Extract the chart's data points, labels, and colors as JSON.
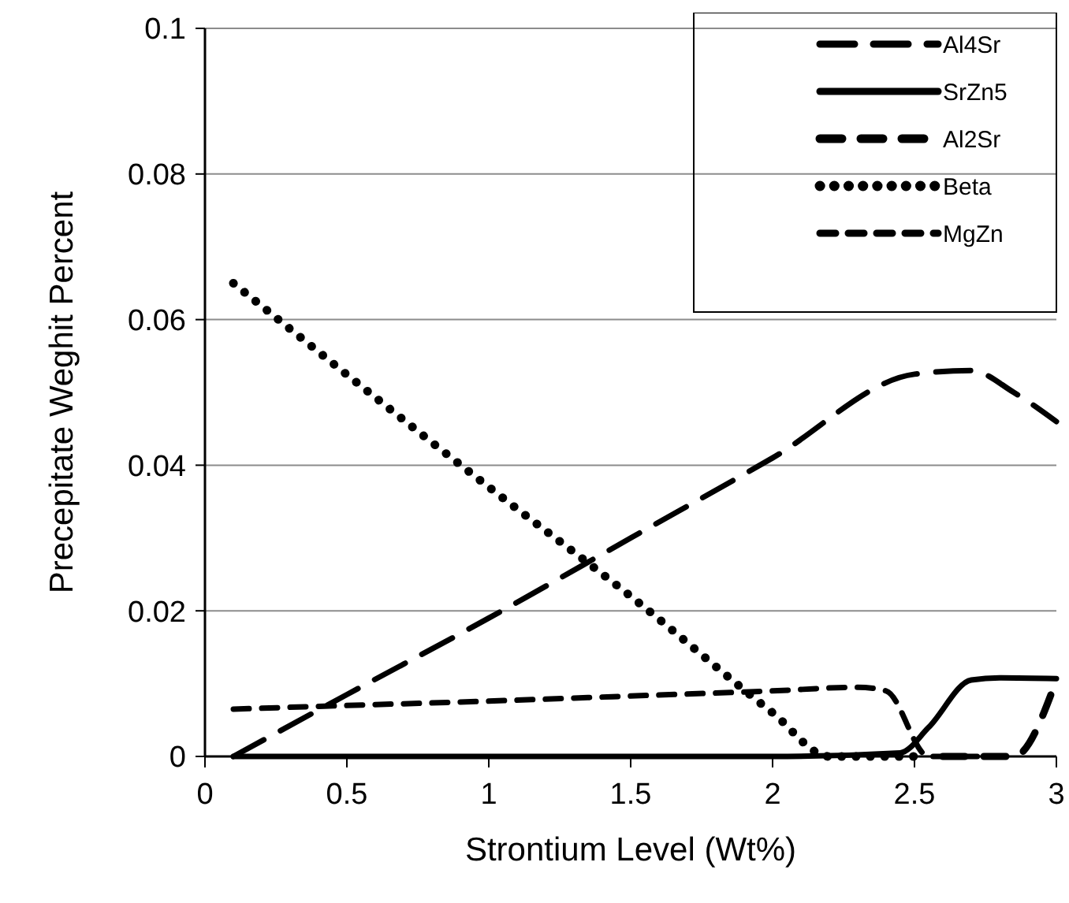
{
  "chart_data": {
    "type": "line",
    "xlabel": "Strontium Level (Wt%)",
    "ylabel": "Precepitate Weghit Percent",
    "xlim": [
      0,
      3
    ],
    "ylim": [
      0,
      0.1
    ],
    "xticks": [
      0,
      0.5,
      1,
      1.5,
      2,
      2.5,
      3
    ],
    "yticks": [
      0,
      0.02,
      0.04,
      0.06,
      0.08,
      0.1
    ],
    "grid": "y",
    "legend": "top right",
    "series": [
      {
        "name": "Al4Sr",
        "color": "#000000",
        "line_style": "dashed",
        "x": [
          0.1,
          0.5,
          1,
          1.5,
          2,
          2.5,
          2.7,
          2.85,
          3
        ],
        "values": [
          0,
          0.0085,
          0.019,
          0.03,
          0.041,
          0.0525,
          0.053,
          0.05,
          0.046
        ]
      },
      {
        "name": "SrZn5",
        "color": "#000000",
        "line_style": "solid",
        "x": [
          0.1,
          1,
          2,
          2.45,
          2.55,
          2.7,
          2.8,
          3
        ],
        "values": [
          0,
          0,
          0,
          0.0005,
          0.004,
          0.0105,
          0.0108,
          0.0107
        ]
      },
      {
        "name": "Al2Sr",
        "color": "#000000",
        "line_style": "dashed",
        "x": [
          2.6,
          2.85,
          3
        ],
        "values": [
          0,
          0,
          0.0105
        ]
      },
      {
        "name": "Beta",
        "color": "#000000",
        "line_style": "dotted",
        "x": [
          0.1,
          1,
          1.5,
          2,
          2.2,
          2.5
        ],
        "values": [
          0.065,
          0.037,
          0.022,
          0.006,
          0,
          0
        ]
      },
      {
        "name": "MgZn",
        "color": "#000000",
        "line_style": "dashed",
        "x": [
          0.1,
          0.5,
          1,
          1.5,
          2,
          2.3,
          2.4,
          2.55,
          2.85
        ],
        "values": [
          0.0065,
          0.007,
          0.0076,
          0.0083,
          0.009,
          0.0095,
          0.009,
          0,
          0
        ]
      }
    ]
  }
}
